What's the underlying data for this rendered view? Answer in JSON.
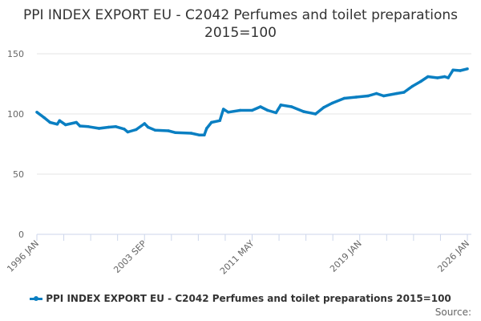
{
  "chart_data": {
    "type": "line",
    "title": "PPI INDEX EXPORT EU - C2042 Perfumes and toilet preparations 2015=100",
    "xlabel": "",
    "ylabel": "",
    "ylim": [
      0,
      150
    ],
    "yticks": [
      0,
      50,
      100,
      150
    ],
    "xlim": [
      "1996-01",
      "2026-01"
    ],
    "xtick_labels": [
      "1996 JAN",
      "2003 SEP",
      "2011 MAY",
      "2019 JAN",
      "2026 JAN"
    ],
    "grid": true,
    "legend": "bottom",
    "color": "#0a7fc2",
    "series": [
      {
        "name": "PPI INDEX EXPORT EU - C2042 Perfumes and toilet preparations 2015=100",
        "points": [
          [
            "1996-01",
            101.5
          ],
          [
            "1996-07",
            97
          ],
          [
            "1996-12",
            93
          ],
          [
            "1997-06",
            91.5
          ],
          [
            "1997-08",
            94.5
          ],
          [
            "1998-01",
            91
          ],
          [
            "1998-10",
            93
          ],
          [
            "1999-01",
            90
          ],
          [
            "1999-08",
            89.5
          ],
          [
            "2000-05",
            88
          ],
          [
            "2001-01",
            89
          ],
          [
            "2001-07",
            89.5
          ],
          [
            "2002-02",
            87.5
          ],
          [
            "2002-05",
            85
          ],
          [
            "2002-12",
            87
          ],
          [
            "2003-07",
            92
          ],
          [
            "2003-10",
            89
          ],
          [
            "2004-04",
            86.5
          ],
          [
            "2005-03",
            86
          ],
          [
            "2005-09",
            84.5
          ],
          [
            "2006-10",
            84
          ],
          [
            "2007-05",
            82.5
          ],
          [
            "2007-09",
            82.5
          ],
          [
            "2007-11",
            88
          ],
          [
            "2008-03",
            93
          ],
          [
            "2008-10",
            94.5
          ],
          [
            "2009-01",
            104
          ],
          [
            "2009-05",
            101.5
          ],
          [
            "2010-03",
            103
          ],
          [
            "2011-01",
            103
          ],
          [
            "2011-08",
            106
          ],
          [
            "2012-02",
            103
          ],
          [
            "2012-09",
            101
          ],
          [
            "2013-01",
            107.5
          ],
          [
            "2013-10",
            106
          ],
          [
            "2014-08",
            102
          ],
          [
            "2015-06",
            100
          ],
          [
            "2016-01",
            105.5
          ],
          [
            "2016-08",
            109
          ],
          [
            "2017-06",
            113
          ],
          [
            "2018-04",
            114
          ],
          [
            "2019-02",
            115
          ],
          [
            "2019-09",
            117
          ],
          [
            "2020-03",
            115
          ],
          [
            "2021-02",
            117
          ],
          [
            "2021-08",
            118
          ],
          [
            "2022-03",
            123
          ],
          [
            "2022-10",
            127
          ],
          [
            "2023-04",
            131
          ],
          [
            "2023-12",
            130
          ],
          [
            "2024-06",
            131
          ],
          [
            "2024-09",
            130
          ],
          [
            "2025-01",
            136.5
          ],
          [
            "2025-07",
            136
          ],
          [
            "2026-01",
            137.5
          ]
        ]
      }
    ]
  },
  "source_label": "Source:"
}
